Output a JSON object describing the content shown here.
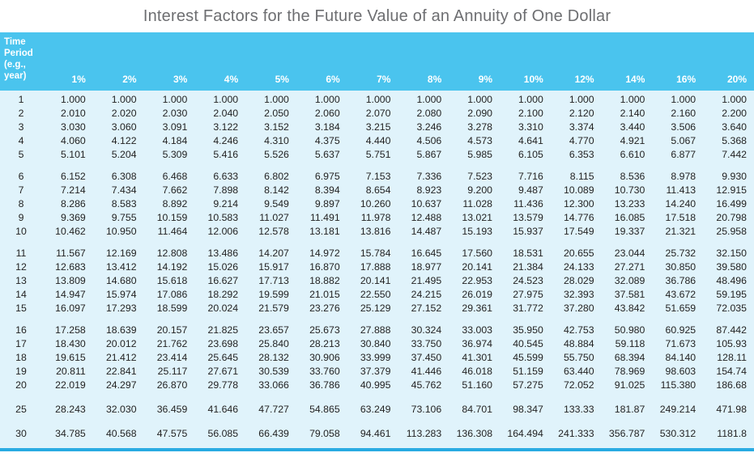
{
  "title": "Interest Factors for the Future Value of an Annuity of One Dollar",
  "colors": {
    "header_bg": "#4ac4ee",
    "body_bg": "#e0f3fb",
    "title_text": "#6d6e71",
    "body_text": "#232323",
    "header_text": "#ffffff",
    "bottom_bar": "#29abe2"
  },
  "chart_data": {
    "type": "table",
    "title": "Interest Factors for the Future Value of an Annuity of One Dollar",
    "corner_header": "Time Period (e.g., year)",
    "corner_header_lines": [
      "Time",
      "Period",
      "(e.g.,",
      "year)"
    ],
    "columns": [
      "1%",
      "2%",
      "3%",
      "4%",
      "5%",
      "6%",
      "7%",
      "8%",
      "9%",
      "10%",
      "12%",
      "14%",
      "16%",
      "20%"
    ],
    "row_groups": [
      [
        {
          "period": "1",
          "values": [
            "1.000",
            "1.000",
            "1.000",
            "1.000",
            "1.000",
            "1.000",
            "1.000",
            "1.000",
            "1.000",
            "1.000",
            "1.000",
            "1.000",
            "1.000",
            "1.000"
          ]
        },
        {
          "period": "2",
          "values": [
            "2.010",
            "2.020",
            "2.030",
            "2.040",
            "2.050",
            "2.060",
            "2.070",
            "2.080",
            "2.090",
            "2.100",
            "2.120",
            "2.140",
            "2.160",
            "2.200"
          ]
        },
        {
          "period": "3",
          "values": [
            "3.030",
            "3.060",
            "3.091",
            "3.122",
            "3.152",
            "3.184",
            "3.215",
            "3.246",
            "3.278",
            "3.310",
            "3.374",
            "3.440",
            "3.506",
            "3.640"
          ]
        },
        {
          "period": "4",
          "values": [
            "4.060",
            "4.122",
            "4.184",
            "4.246",
            "4.310",
            "4.375",
            "4.440",
            "4.506",
            "4.573",
            "4.641",
            "4.770",
            "4.921",
            "5.067",
            "5.368"
          ]
        },
        {
          "period": "5",
          "values": [
            "5.101",
            "5.204",
            "5.309",
            "5.416",
            "5.526",
            "5.637",
            "5.751",
            "5.867",
            "5.985",
            "6.105",
            "6.353",
            "6.610",
            "6.877",
            "7.442"
          ]
        }
      ],
      [
        {
          "period": "6",
          "values": [
            "6.152",
            "6.308",
            "6.468",
            "6.633",
            "6.802",
            "6.975",
            "7.153",
            "7.336",
            "7.523",
            "7.716",
            "8.115",
            "8.536",
            "8.978",
            "9.930"
          ]
        },
        {
          "period": "7",
          "values": [
            "7.214",
            "7.434",
            "7.662",
            "7.898",
            "8.142",
            "8.394",
            "8.654",
            "8.923",
            "9.200",
            "9.487",
            "10.089",
            "10.730",
            "11.413",
            "12.915"
          ]
        },
        {
          "period": "8",
          "values": [
            "8.286",
            "8.583",
            "8.892",
            "9.214",
            "9.549",
            "9.897",
            "10.260",
            "10.637",
            "11.028",
            "11.436",
            "12.300",
            "13.233",
            "14.240",
            "16.499"
          ]
        },
        {
          "period": "9",
          "values": [
            "9.369",
            "9.755",
            "10.159",
            "10.583",
            "11.027",
            "11.491",
            "11.978",
            "12.488",
            "13.021",
            "13.579",
            "14.776",
            "16.085",
            "17.518",
            "20.798"
          ]
        },
        {
          "period": "10",
          "values": [
            "10.462",
            "10.950",
            "11.464",
            "12.006",
            "12.578",
            "13.181",
            "13.816",
            "14.487",
            "15.193",
            "15.937",
            "17.549",
            "19.337",
            "21.321",
            "25.958"
          ]
        }
      ],
      [
        {
          "period": "11",
          "values": [
            "11.567",
            "12.169",
            "12.808",
            "13.486",
            "14.207",
            "14.972",
            "15.784",
            "16.645",
            "17.560",
            "18.531",
            "20.655",
            "23.044",
            "25.732",
            "32.150"
          ]
        },
        {
          "period": "12",
          "values": [
            "12.683",
            "13.412",
            "14.192",
            "15.026",
            "15.917",
            "16.870",
            "17.888",
            "18.977",
            "20.141",
            "21.384",
            "24.133",
            "27.271",
            "30.850",
            "39.580"
          ]
        },
        {
          "period": "13",
          "values": [
            "13.809",
            "14.680",
            "15.618",
            "16.627",
            "17.713",
            "18.882",
            "20.141",
            "21.495",
            "22.953",
            "24.523",
            "28.029",
            "32.089",
            "36.786",
            "48.496"
          ]
        },
        {
          "period": "14",
          "values": [
            "14.947",
            "15.974",
            "17.086",
            "18.292",
            "19.599",
            "21.015",
            "22.550",
            "24.215",
            "26.019",
            "27.975",
            "32.393",
            "37.581",
            "43.672",
            "59.195"
          ]
        },
        {
          "period": "15",
          "values": [
            "16.097",
            "17.293",
            "18.599",
            "20.024",
            "21.579",
            "23.276",
            "25.129",
            "27.152",
            "29.361",
            "31.772",
            "37.280",
            "43.842",
            "51.659",
            "72.035"
          ]
        }
      ],
      [
        {
          "period": "16",
          "values": [
            "17.258",
            "18.639",
            "20.157",
            "21.825",
            "23.657",
            "25.673",
            "27.888",
            "30.324",
            "33.003",
            "35.950",
            "42.753",
            "50.980",
            "60.925",
            "87.442"
          ]
        },
        {
          "period": "17",
          "values": [
            "18.430",
            "20.012",
            "21.762",
            "23.698",
            "25.840",
            "28.213",
            "30.840",
            "33.750",
            "36.974",
            "40.545",
            "48.884",
            "59.118",
            "71.673",
            "105.93"
          ]
        },
        {
          "period": "18",
          "values": [
            "19.615",
            "21.412",
            "23.414",
            "25.645",
            "28.132",
            "30.906",
            "33.999",
            "37.450",
            "41.301",
            "45.599",
            "55.750",
            "68.394",
            "84.140",
            "128.11"
          ]
        },
        {
          "period": "19",
          "values": [
            "20.811",
            "22.841",
            "25.117",
            "27.671",
            "30.539",
            "33.760",
            "37.379",
            "41.446",
            "46.018",
            "51.159",
            "63.440",
            "78.969",
            "98.603",
            "154.74"
          ]
        },
        {
          "period": "20",
          "values": [
            "22.019",
            "24.297",
            "26.870",
            "29.778",
            "33.066",
            "36.786",
            "40.995",
            "45.762",
            "51.160",
            "57.275",
            "72.052",
            "91.025",
            "115.380",
            "186.68"
          ]
        }
      ],
      [
        {
          "period": "25",
          "values": [
            "28.243",
            "32.030",
            "36.459",
            "41.646",
            "47.727",
            "54.865",
            "63.249",
            "73.106",
            "84.701",
            "98.347",
            "133.33",
            "181.87",
            "249.214",
            "471.98"
          ]
        }
      ],
      [
        {
          "period": "30",
          "values": [
            "34.785",
            "40.568",
            "47.575",
            "56.085",
            "66.439",
            "79.058",
            "94.461",
            "113.283",
            "136.308",
            "164.494",
            "241.333",
            "356.787",
            "530.312",
            "1181.8"
          ]
        }
      ]
    ]
  }
}
